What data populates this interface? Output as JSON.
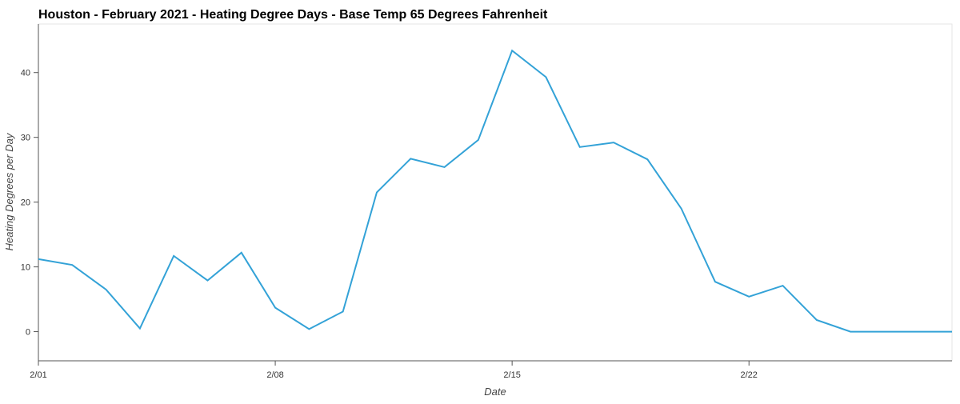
{
  "chart_data": {
    "type": "line",
    "title": "Houston - February 2021 - Heating Degree Days - Base Temp 65 Degrees Fahrenheit",
    "xlabel": "Date",
    "ylabel": "Heating Degrees per Day",
    "x_tick_labels": [
      "2/01",
      "2/08",
      "2/15",
      "2/22"
    ],
    "y_tick_labels": [
      "0",
      "10",
      "20",
      "30",
      "40"
    ],
    "y_ticks": [
      0,
      10,
      20,
      30,
      40
    ],
    "x_ticks_day": [
      1,
      8,
      15,
      22
    ],
    "xlim": [
      1,
      28
    ],
    "ylim": [
      -4.5,
      47.5
    ],
    "grid": false,
    "colors": {
      "line": "#33a2d7",
      "axis": "#555555",
      "frame": "#e6e6e6"
    },
    "series": [
      {
        "x": [
          "2/01",
          "2/02",
          "2/03",
          "2/04",
          "2/05",
          "2/06",
          "2/07",
          "2/08",
          "2/09",
          "2/10",
          "2/11",
          "2/12",
          "2/13",
          "2/14",
          "2/15",
          "2/16",
          "2/17",
          "2/18",
          "2/19",
          "2/20",
          "2/21",
          "2/22",
          "2/23",
          "2/24",
          "2/25",
          "2/26",
          "2/27",
          "2/28"
        ],
        "values": [
          11.2,
          10.3,
          6.5,
          0.5,
          11.7,
          7.9,
          12.2,
          3.7,
          0.4,
          3.1,
          21.5,
          26.7,
          25.4,
          29.6,
          43.4,
          39.3,
          28.5,
          29.2,
          26.6,
          19.0,
          7.7,
          5.4,
          7.1,
          1.8,
          0.0,
          0.0,
          0.0,
          0.0
        ]
      }
    ]
  }
}
